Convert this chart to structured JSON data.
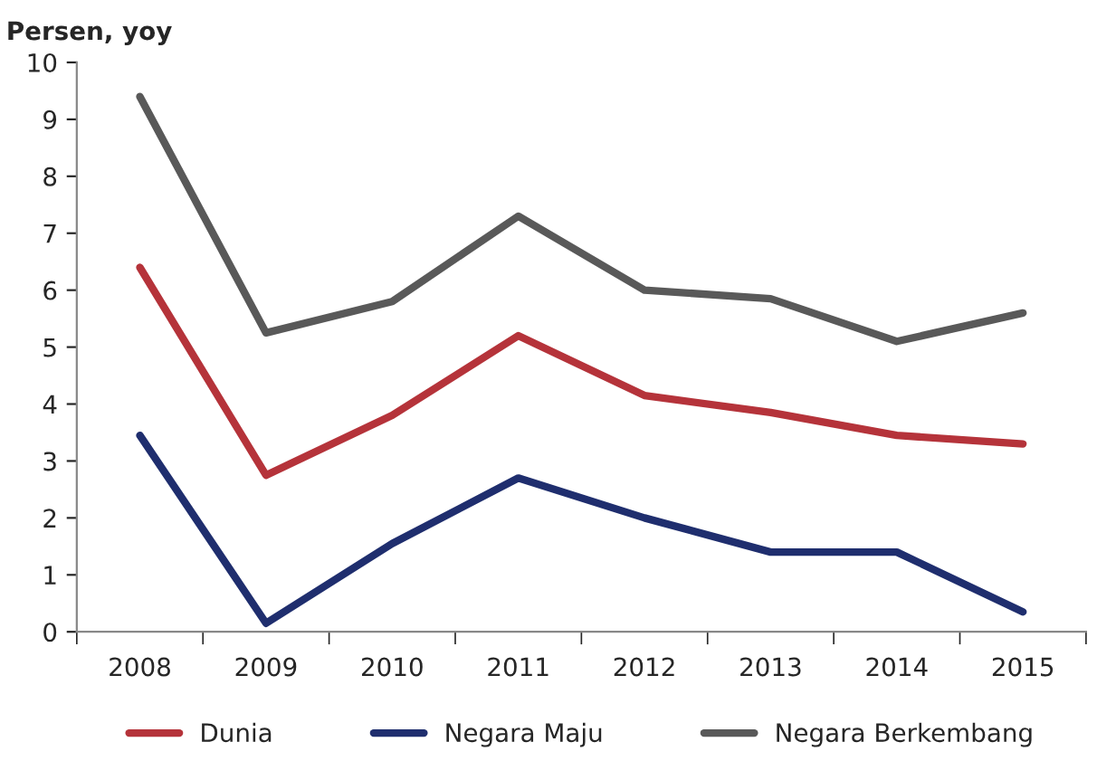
{
  "chart_data": {
    "type": "line",
    "ylabel": "Persen, yoy",
    "categories": [
      "2008",
      "2009",
      "2010",
      "2011",
      "2012",
      "2013",
      "2014",
      "2015"
    ],
    "series": [
      {
        "name": "Dunia",
        "color": "#b5333a",
        "values": [
          6.4,
          2.75,
          3.8,
          5.2,
          4.15,
          3.85,
          3.45,
          3.3
        ]
      },
      {
        "name": "Negara Maju",
        "color": "#1f2e6e",
        "values": [
          3.45,
          0.15,
          1.55,
          2.7,
          2.0,
          1.4,
          1.4,
          0.35
        ]
      },
      {
        "name": "Negara Berkembang",
        "color": "#595959",
        "values": [
          9.4,
          5.25,
          5.8,
          7.3,
          6.0,
          5.85,
          5.1,
          5.6
        ]
      }
    ],
    "ylim": [
      0,
      10
    ],
    "yticks": [
      0,
      1,
      2,
      3,
      4,
      5,
      6,
      7,
      8,
      9,
      10
    ],
    "grid": false,
    "legend": "bottom",
    "marker": "none",
    "line_style": "solid"
  }
}
